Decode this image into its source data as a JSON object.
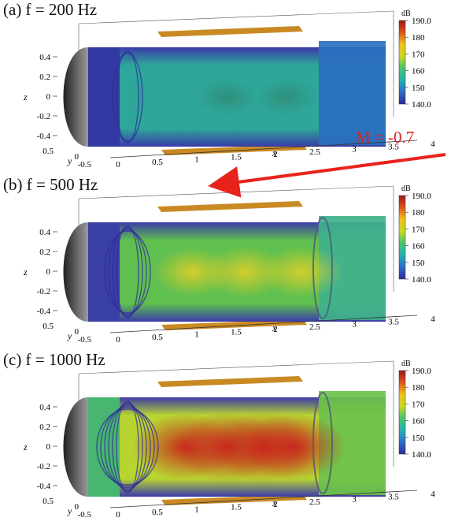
{
  "figure": {
    "mach_label": "M = -0.7",
    "arrow_color": "#e8231c",
    "flow_direction": "leftward (negative x)"
  },
  "colormap": [
    "#2d2a9b",
    "#2f6cc8",
    "#21b3b4",
    "#48c36b",
    "#c7d824",
    "#f1c21b",
    "#d9551c",
    "#9c1518"
  ],
  "panels": [
    {
      "id": "a",
      "title": "(a) f = 200 Hz",
      "frequency_hz": 200,
      "colorbar_unit": "dB",
      "colorbar_ticks": [
        "190.0",
        "180",
        "170",
        "160",
        "150",
        "140.0"
      ],
      "z_ticks": [
        "0.4",
        "0.2",
        "0",
        "-0.2",
        "-0.4"
      ],
      "y_ticks": [
        "0.5",
        "0",
        "-0.5"
      ],
      "x_ticks": [
        "0",
        "0.5",
        "1",
        "1.5",
        "2",
        "2.5",
        "3",
        "3.5",
        "4"
      ],
      "z_label": "z",
      "y_label": "y",
      "x_label": "x",
      "field_base_color": "#2ea69a",
      "hot_color": "#2e8f78",
      "inlet_color": "#3339a3",
      "outlet_color": "#2a6fbf",
      "lobes": [
        {
          "x": 1.45,
          "level": 0.35
        },
        {
          "x": 2.25,
          "level": 0.35
        }
      ]
    },
    {
      "id": "b",
      "title": "(b) f = 500 Hz",
      "frequency_hz": 500,
      "colorbar_unit": "dB",
      "colorbar_ticks": [
        "190.0",
        "180",
        "170",
        "160",
        "150",
        "140.0"
      ],
      "z_ticks": [
        "0.4",
        "0.2",
        "0",
        "-0.2",
        "-0.4"
      ],
      "y_ticks": [
        "0.5",
        "0",
        "-0.5"
      ],
      "x_ticks": [
        "0",
        "0.5",
        "1",
        "1.5",
        "2",
        "2.5",
        "3",
        "3.5",
        "4"
      ],
      "z_label": "z",
      "y_label": "y",
      "x_label": "x",
      "field_base_color": "#5fbf4f",
      "hot_color": "#d9cf2a",
      "inlet_color": "#3a3fa6",
      "outlet_color": "#3fb28c",
      "lobes": [
        {
          "x": 1.0,
          "level": 0.55
        },
        {
          "x": 1.7,
          "level": 0.6
        },
        {
          "x": 2.45,
          "level": 0.6
        }
      ]
    },
    {
      "id": "c",
      "title": "(c) f = 1000 Hz",
      "frequency_hz": 1000,
      "colorbar_unit": "dB",
      "colorbar_ticks": [
        "190.0",
        "180",
        "170",
        "160",
        "150",
        "140.0"
      ],
      "z_ticks": [
        "0.4",
        "0.2",
        "0",
        "-0.2",
        "-0.4"
      ],
      "y_ticks": [
        "0.5",
        "0",
        "-0.5"
      ],
      "x_ticks": [
        "0",
        "0.5",
        "1",
        "1.5",
        "2",
        "2.5",
        "3",
        "3.5",
        "4"
      ],
      "z_label": "z",
      "y_label": "y",
      "x_label": "x",
      "field_base_color": "#b8d431",
      "hot_color": "#c8241c",
      "inlet_color": "#48b570",
      "outlet_color": "#6cc24a",
      "lobes": [
        {
          "x": 0.9,
          "level": 0.85
        },
        {
          "x": 1.45,
          "level": 0.9
        },
        {
          "x": 1.95,
          "level": 0.9
        },
        {
          "x": 2.35,
          "level": 0.85
        }
      ]
    }
  ],
  "chart_data": [
    {
      "type": "heatmap",
      "title": "(a) f = 200 Hz",
      "quantity": "sound pressure level",
      "colorbar_label": "dB",
      "colorbar_range": [
        140,
        190
      ],
      "xlim": [
        0,
        4
      ],
      "ylim": [
        -0.5,
        0.5
      ],
      "zlim": [
        -0.5,
        0.5
      ],
      "xlabel": "x",
      "ylabel": "y",
      "zlabel": "z"
    },
    {
      "type": "heatmap",
      "title": "(b) f = 500 Hz",
      "quantity": "sound pressure level",
      "colorbar_label": "dB",
      "colorbar_range": [
        140,
        190
      ],
      "xlim": [
        0,
        4
      ],
      "ylim": [
        -0.5,
        0.5
      ],
      "zlim": [
        -0.5,
        0.5
      ],
      "xlabel": "x",
      "ylabel": "y",
      "zlabel": "z"
    },
    {
      "type": "heatmap",
      "title": "(c) f = 1000 Hz",
      "quantity": "sound pressure level",
      "colorbar_label": "dB",
      "colorbar_range": [
        140,
        190
      ],
      "xlim": [
        0,
        4
      ],
      "ylim": [
        -0.5,
        0.5
      ],
      "zlim": [
        -0.5,
        0.5
      ],
      "xlabel": "x",
      "ylabel": "y",
      "zlabel": "z"
    }
  ]
}
